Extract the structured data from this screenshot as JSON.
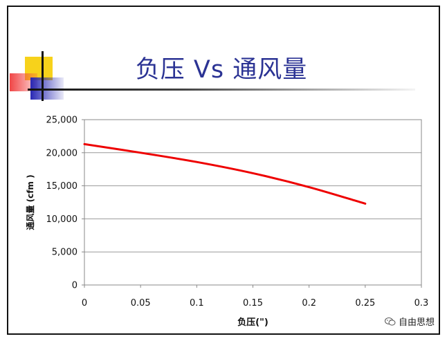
{
  "slide": {
    "title": "负压 Vs 通风量",
    "watermark_text": "自由思想",
    "watermark_icon": "wechat-icon"
  },
  "chart_data": {
    "type": "line",
    "title": "",
    "xlabel": "负压(\")",
    "ylabel": "通风量 (cfm   )",
    "xlim": [
      0,
      0.3
    ],
    "ylim": [
      0,
      25000
    ],
    "x_ticks": [
      "0",
      "0.05",
      "0.1",
      "0.15",
      "0.2",
      "0.25",
      "0.3"
    ],
    "y_ticks": [
      "0",
      "5,000",
      "10,000",
      "15,000",
      "20,000",
      "25,000"
    ],
    "grid": true,
    "legend": "none",
    "series": [
      {
        "color": "#ee0000",
        "x": [
          0,
          0.05,
          0.1,
          0.15,
          0.2,
          0.25
        ],
        "y": [
          21300,
          20000,
          18600,
          16900,
          14800,
          12300
        ]
      }
    ]
  }
}
